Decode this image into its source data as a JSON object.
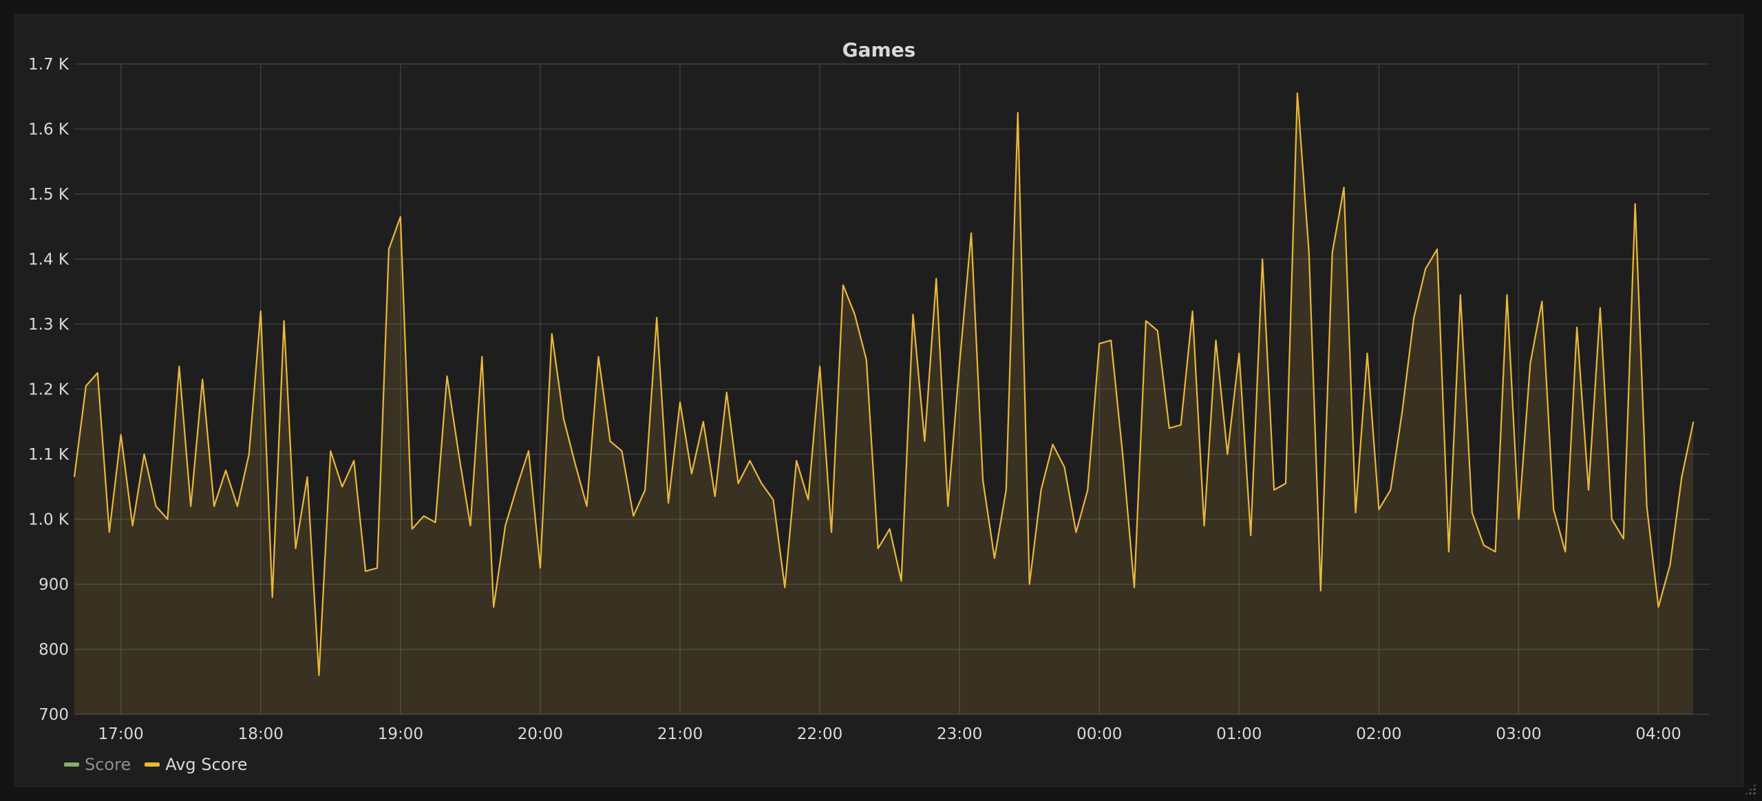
{
  "panel": {
    "title": "Games"
  },
  "legend": [
    {
      "label": "Score",
      "color": "#7eb26d",
      "muted": true
    },
    {
      "label": "Avg Score",
      "color": "#eab839",
      "muted": false
    }
  ],
  "colors": {
    "background": "#141414",
    "panel": "#1f1e1f",
    "grid": "#3d3d3d",
    "line": "#eab839",
    "fill": "#eab839"
  },
  "chart_data": {
    "type": "area",
    "title": "Games",
    "xlabel": "",
    "ylabel": "",
    "ylim": [
      700,
      1700
    ],
    "xlim": [
      "16:40",
      "04:22"
    ],
    "y_ticks": [
      "700",
      "800",
      "900",
      "1.0 K",
      "1.1 K",
      "1.2 K",
      "1.3 K",
      "1.4 K",
      "1.5 K",
      "1.6 K",
      "1.7 K"
    ],
    "y_tick_values": [
      700,
      800,
      900,
      1000,
      1100,
      1200,
      1300,
      1400,
      1500,
      1600,
      1700
    ],
    "x_ticks": [
      "17:00",
      "18:00",
      "19:00",
      "20:00",
      "21:00",
      "22:00",
      "23:00",
      "00:00",
      "01:00",
      "02:00",
      "03:00",
      "04:00"
    ],
    "grid": true,
    "legend_position": "bottom-left",
    "series": [
      {
        "name": "Avg Score",
        "x_start": "16:40",
        "interval_minutes": 5,
        "values": [
          1065,
          1205,
          1225,
          980,
          1130,
          990,
          1100,
          1020,
          1000,
          1235,
          1020,
          1215,
          1020,
          1075,
          1020,
          1100,
          1320,
          880,
          1305,
          955,
          1065,
          760,
          1105,
          1050,
          1090,
          920,
          925,
          1415,
          1465,
          985,
          1005,
          995,
          1220,
          1100,
          990,
          1250,
          865,
          990,
          1050,
          1105,
          925,
          1285,
          1155,
          1085,
          1020,
          1250,
          1120,
          1105,
          1005,
          1045,
          1310,
          1025,
          1180,
          1070,
          1150,
          1035,
          1195,
          1055,
          1090,
          1055,
          1030,
          895,
          1090,
          1030,
          1235,
          980,
          1360,
          1315,
          1245,
          955,
          985,
          905,
          1315,
          1120,
          1370,
          1020,
          1240,
          1440,
          1060,
          940,
          1045,
          1625,
          900,
          1045,
          1115,
          1080,
          980,
          1045,
          1270,
          1275,
          1100,
          895,
          1305,
          1290,
          1140,
          1145,
          1320,
          990,
          1275,
          1100,
          1255,
          975,
          1400,
          1045,
          1055,
          1655,
          1410,
          890,
          1410,
          1510,
          1010,
          1255,
          1015,
          1045,
          1165,
          1310,
          1385,
          1415,
          950,
          1345,
          1010,
          960,
          950,
          1345,
          1000,
          1240,
          1335,
          1015,
          950,
          1295,
          1045,
          1325,
          1000,
          970,
          1485,
          1020,
          865,
          930,
          1065,
          1150
        ]
      }
    ]
  }
}
